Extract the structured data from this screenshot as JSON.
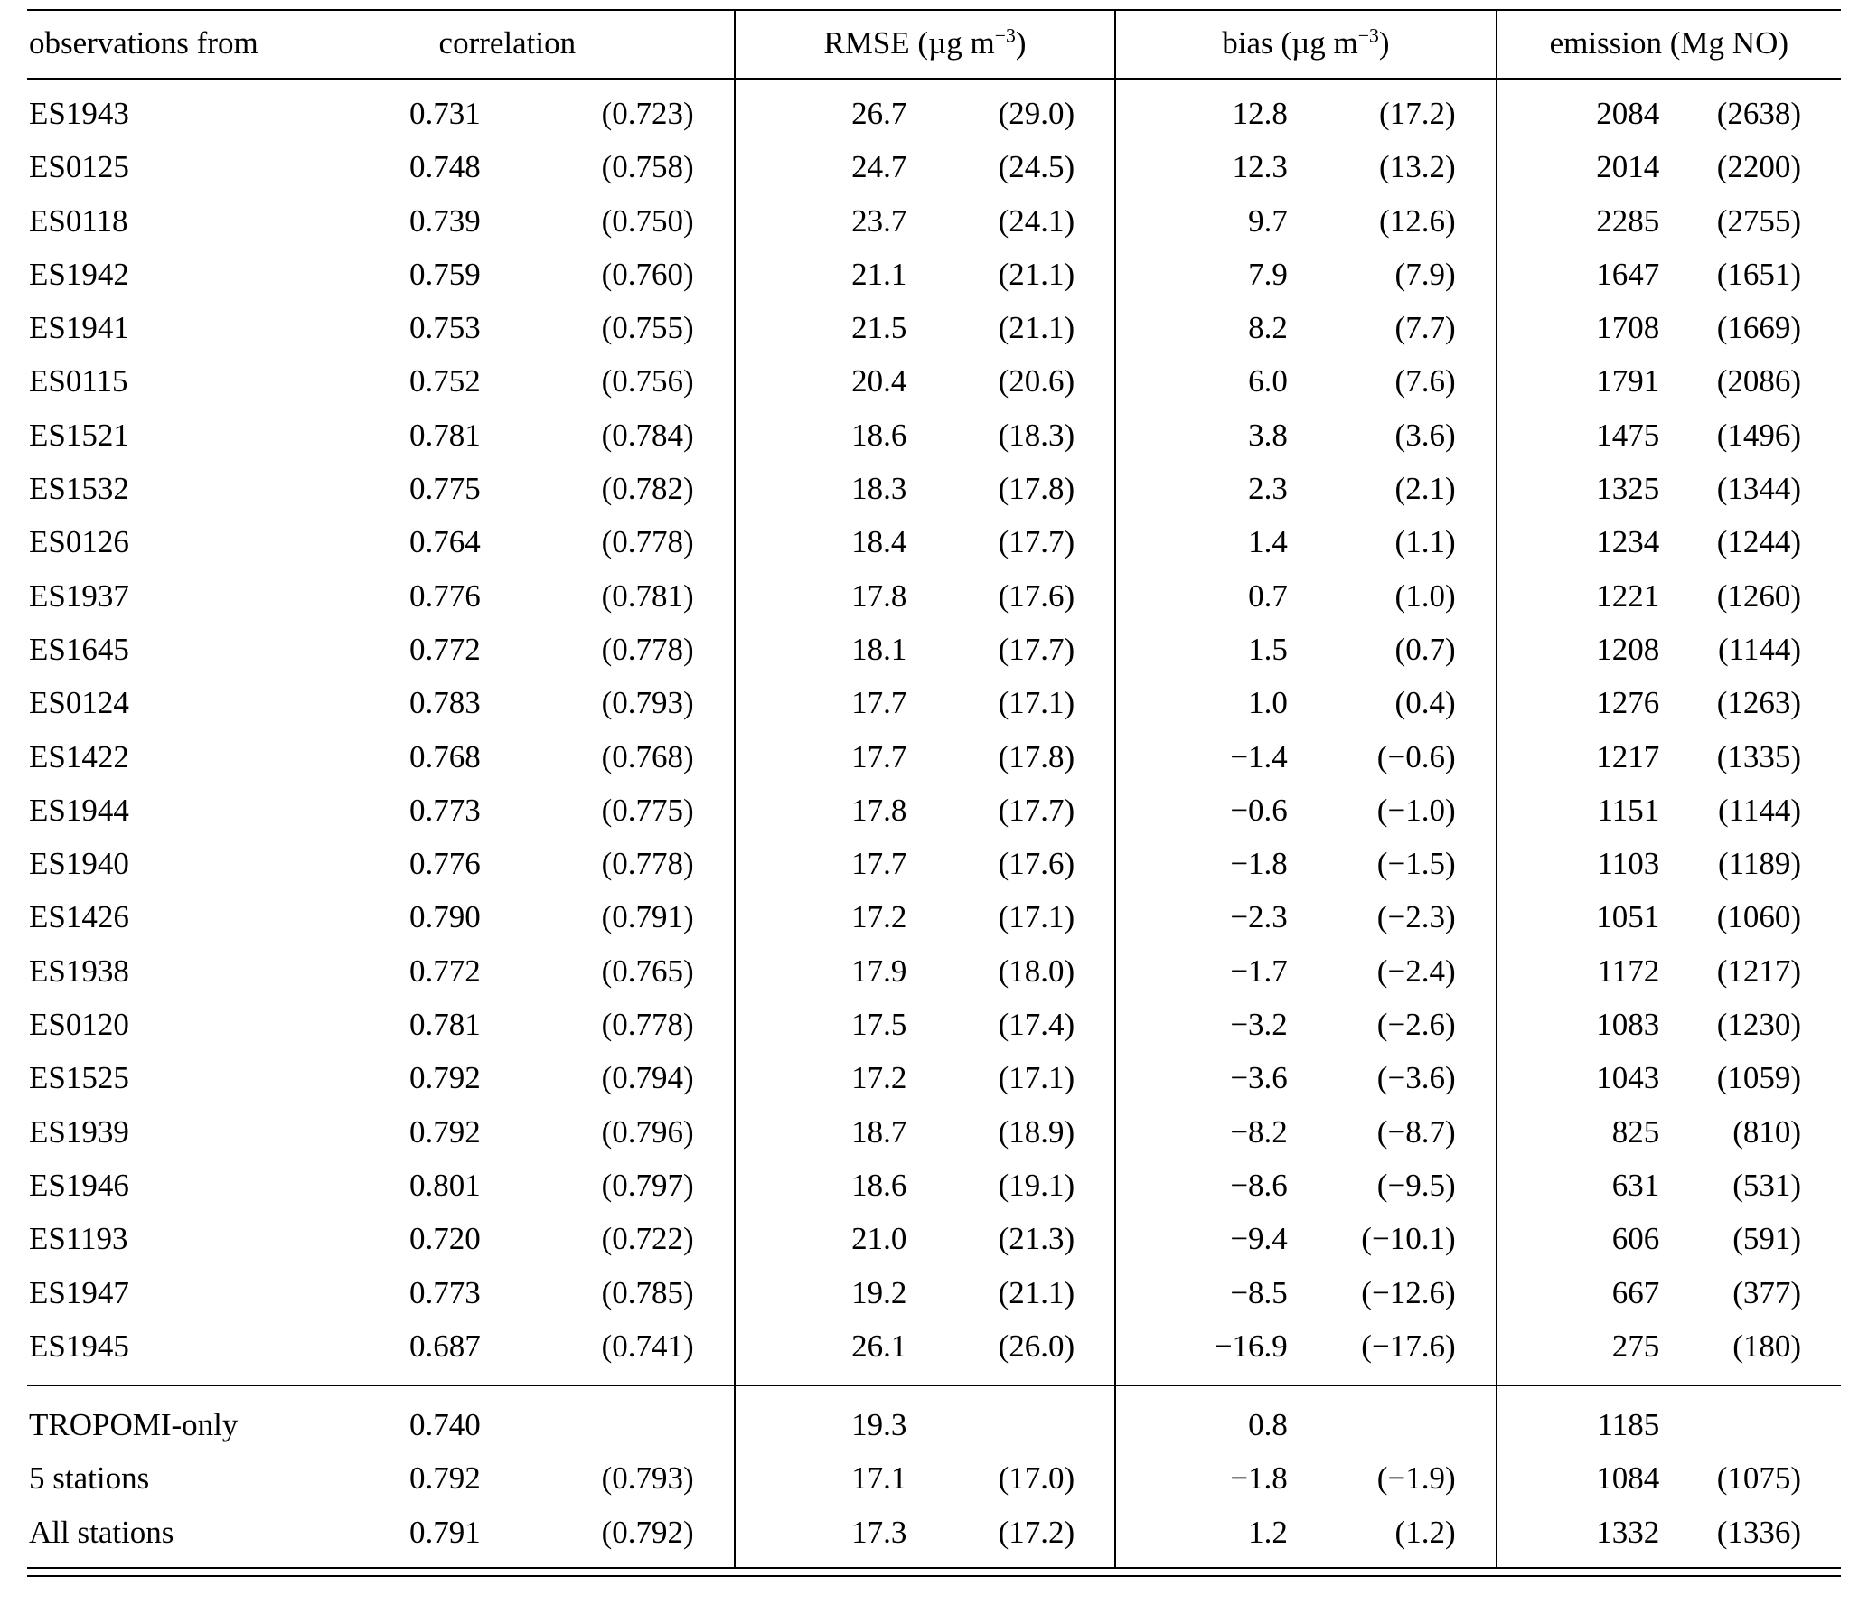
{
  "table": {
    "headers": {
      "station": "observations from",
      "correlation": "correlation",
      "rmse_pre": "RMSE (µg m",
      "rmse_sup": "−3",
      "rmse_post": ")",
      "bias_pre": "bias (µg m",
      "bias_sup": "−3",
      "bias_post": ")",
      "emission": "emission (Mg NO)"
    },
    "rows": [
      {
        "station": "ES1943",
        "corr": "0.731",
        "corr_p": "(0.723)",
        "rmse": "26.7",
        "rmse_p": "(29.0)",
        "bias": "12.8",
        "bias_p": "(17.2)",
        "emis": "2084",
        "emis_p": "(2638)"
      },
      {
        "station": "ES0125",
        "corr": "0.748",
        "corr_p": "(0.758)",
        "rmse": "24.7",
        "rmse_p": "(24.5)",
        "bias": "12.3",
        "bias_p": "(13.2)",
        "emis": "2014",
        "emis_p": "(2200)"
      },
      {
        "station": "ES0118",
        "corr": "0.739",
        "corr_p": "(0.750)",
        "rmse": "23.7",
        "rmse_p": "(24.1)",
        "bias": "9.7",
        "bias_p": "(12.6)",
        "emis": "2285",
        "emis_p": "(2755)"
      },
      {
        "station": "ES1942",
        "corr": "0.759",
        "corr_p": "(0.760)",
        "rmse": "21.1",
        "rmse_p": "(21.1)",
        "bias": "7.9",
        "bias_p": "(7.9)",
        "emis": "1647",
        "emis_p": "(1651)"
      },
      {
        "station": "ES1941",
        "corr": "0.753",
        "corr_p": "(0.755)",
        "rmse": "21.5",
        "rmse_p": "(21.1)",
        "bias": "8.2",
        "bias_p": "(7.7)",
        "emis": "1708",
        "emis_p": "(1669)"
      },
      {
        "station": "ES0115",
        "corr": "0.752",
        "corr_p": "(0.756)",
        "rmse": "20.4",
        "rmse_p": "(20.6)",
        "bias": "6.0",
        "bias_p": "(7.6)",
        "emis": "1791",
        "emis_p": "(2086)"
      },
      {
        "station": "ES1521",
        "corr": "0.781",
        "corr_p": "(0.784)",
        "rmse": "18.6",
        "rmse_p": "(18.3)",
        "bias": "3.8",
        "bias_p": "(3.6)",
        "emis": "1475",
        "emis_p": "(1496)"
      },
      {
        "station": "ES1532",
        "corr": "0.775",
        "corr_p": "(0.782)",
        "rmse": "18.3",
        "rmse_p": "(17.8)",
        "bias": "2.3",
        "bias_p": "(2.1)",
        "emis": "1325",
        "emis_p": "(1344)"
      },
      {
        "station": "ES0126",
        "corr": "0.764",
        "corr_p": "(0.778)",
        "rmse": "18.4",
        "rmse_p": "(17.7)",
        "bias": "1.4",
        "bias_p": "(1.1)",
        "emis": "1234",
        "emis_p": "(1244)"
      },
      {
        "station": "ES1937",
        "corr": "0.776",
        "corr_p": "(0.781)",
        "rmse": "17.8",
        "rmse_p": "(17.6)",
        "bias": "0.7",
        "bias_p": "(1.0)",
        "emis": "1221",
        "emis_p": "(1260)"
      },
      {
        "station": "ES1645",
        "corr": "0.772",
        "corr_p": "(0.778)",
        "rmse": "18.1",
        "rmse_p": "(17.7)",
        "bias": "1.5",
        "bias_p": "(0.7)",
        "emis": "1208",
        "emis_p": "(1144)"
      },
      {
        "station": "ES0124",
        "corr": "0.783",
        "corr_p": "(0.793)",
        "rmse": "17.7",
        "rmse_p": "(17.1)",
        "bias": "1.0",
        "bias_p": "(0.4)",
        "emis": "1276",
        "emis_p": "(1263)"
      },
      {
        "station": "ES1422",
        "corr": "0.768",
        "corr_p": "(0.768)",
        "rmse": "17.7",
        "rmse_p": "(17.8)",
        "bias": "−1.4",
        "bias_p": "(−0.6)",
        "emis": "1217",
        "emis_p": "(1335)"
      },
      {
        "station": "ES1944",
        "corr": "0.773",
        "corr_p": "(0.775)",
        "rmse": "17.8",
        "rmse_p": "(17.7)",
        "bias": "−0.6",
        "bias_p": "(−1.0)",
        "emis": "1151",
        "emis_p": "(1144)"
      },
      {
        "station": "ES1940",
        "corr": "0.776",
        "corr_p": "(0.778)",
        "rmse": "17.7",
        "rmse_p": "(17.6)",
        "bias": "−1.8",
        "bias_p": "(−1.5)",
        "emis": "1103",
        "emis_p": "(1189)"
      },
      {
        "station": "ES1426",
        "corr": "0.790",
        "corr_p": "(0.791)",
        "rmse": "17.2",
        "rmse_p": "(17.1)",
        "bias": "−2.3",
        "bias_p": "(−2.3)",
        "emis": "1051",
        "emis_p": "(1060)"
      },
      {
        "station": "ES1938",
        "corr": "0.772",
        "corr_p": "(0.765)",
        "rmse": "17.9",
        "rmse_p": "(18.0)",
        "bias": "−1.7",
        "bias_p": "(−2.4)",
        "emis": "1172",
        "emis_p": "(1217)"
      },
      {
        "station": "ES0120",
        "corr": "0.781",
        "corr_p": "(0.778)",
        "rmse": "17.5",
        "rmse_p": "(17.4)",
        "bias": "−3.2",
        "bias_p": "(−2.6)",
        "emis": "1083",
        "emis_p": "(1230)"
      },
      {
        "station": "ES1525",
        "corr": "0.792",
        "corr_p": "(0.794)",
        "rmse": "17.2",
        "rmse_p": "(17.1)",
        "bias": "−3.6",
        "bias_p": "(−3.6)",
        "emis": "1043",
        "emis_p": "(1059)"
      },
      {
        "station": "ES1939",
        "corr": "0.792",
        "corr_p": "(0.796)",
        "rmse": "18.7",
        "rmse_p": "(18.9)",
        "bias": "−8.2",
        "bias_p": "(−8.7)",
        "emis": "825",
        "emis_p": "(810)"
      },
      {
        "station": "ES1946",
        "corr": "0.801",
        "corr_p": "(0.797)",
        "rmse": "18.6",
        "rmse_p": "(19.1)",
        "bias": "−8.6",
        "bias_p": "(−9.5)",
        "emis": "631",
        "emis_p": "(531)"
      },
      {
        "station": "ES1193",
        "corr": "0.720",
        "corr_p": "(0.722)",
        "rmse": "21.0",
        "rmse_p": "(21.3)",
        "bias": "−9.4",
        "bias_p": "(−10.1)",
        "emis": "606",
        "emis_p": "(591)"
      },
      {
        "station": "ES1947",
        "corr": "0.773",
        "corr_p": "(0.785)",
        "rmse": "19.2",
        "rmse_p": "(21.1)",
        "bias": "−8.5",
        "bias_p": "(−12.6)",
        "emis": "667",
        "emis_p": "(377)"
      },
      {
        "station": "ES1945",
        "corr": "0.687",
        "corr_p": "(0.741)",
        "rmse": "26.1",
        "rmse_p": "(26.0)",
        "bias": "−16.9",
        "bias_p": "(−17.6)",
        "emis": "275",
        "emis_p": "(180)"
      }
    ],
    "summary_rows": [
      {
        "station": "TROPOMI-only",
        "corr": "0.740",
        "corr_p": "",
        "rmse": "19.3",
        "rmse_p": "",
        "bias": "0.8",
        "bias_p": "",
        "emis": "1185",
        "emis_p": ""
      },
      {
        "station": "5 stations",
        "corr": "0.792",
        "corr_p": "(0.793)",
        "rmse": "17.1",
        "rmse_p": "(17.0)",
        "bias": "−1.8",
        "bias_p": "(−1.9)",
        "emis": "1084",
        "emis_p": "(1075)"
      },
      {
        "station": "All stations",
        "corr": "0.791",
        "corr_p": "(0.792)",
        "rmse": "17.3",
        "rmse_p": "(17.2)",
        "bias": "1.2",
        "bias_p": "(1.2)",
        "emis": "1332",
        "emis_p": "(1336)"
      }
    ]
  }
}
